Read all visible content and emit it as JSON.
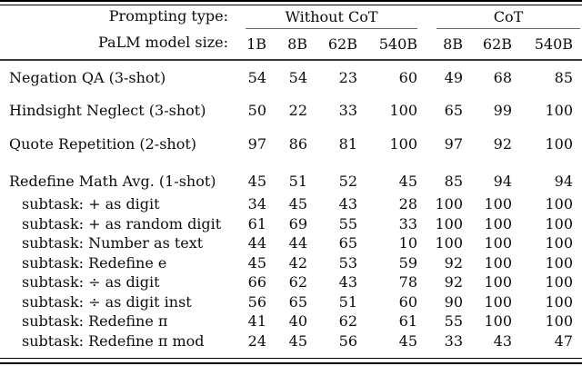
{
  "table": {
    "header": {
      "prompting_type_label": "Prompting type:",
      "model_size_label": "PaLM model size:",
      "group1": "Without CoT",
      "group2": "CoT",
      "group1_cols": [
        "1B",
        "8B",
        "62B",
        "540B"
      ],
      "group2_cols": [
        "8B",
        "62B",
        "540B"
      ]
    },
    "rows": [
      {
        "label": "Negation QA (3-shot)",
        "indent": false,
        "values": [
          "54",
          "54",
          "23",
          "60",
          "49",
          "68",
          "85"
        ]
      },
      {
        "label": "Hindsight Neglect (3-shot)",
        "indent": false,
        "values": [
          "50",
          "22",
          "33",
          "100",
          "65",
          "99",
          "100"
        ]
      },
      {
        "label": "Quote Repetition (2-shot)",
        "indent": false,
        "values": [
          "97",
          "86",
          "81",
          "100",
          "97",
          "92",
          "100"
        ]
      },
      {
        "label": "Redefine Math Avg. (1-shot)",
        "indent": false,
        "values": [
          "45",
          "51",
          "52",
          "45",
          "85",
          "94",
          "94"
        ]
      },
      {
        "label": "subtask: + as digit",
        "indent": true,
        "values": [
          "34",
          "45",
          "43",
          "28",
          "100",
          "100",
          "100"
        ]
      },
      {
        "label": "subtask: + as random digit",
        "indent": true,
        "values": [
          "61",
          "69",
          "55",
          "33",
          "100",
          "100",
          "100"
        ]
      },
      {
        "label": "subtask: Number as text",
        "indent": true,
        "values": [
          "44",
          "44",
          "65",
          "10",
          "100",
          "100",
          "100"
        ]
      },
      {
        "label": "subtask: Redefine e",
        "indent": true,
        "values": [
          "45",
          "42",
          "53",
          "59",
          "92",
          "100",
          "100"
        ]
      },
      {
        "label": "subtask: ÷ as digit",
        "indent": true,
        "values": [
          "66",
          "62",
          "43",
          "78",
          "92",
          "100",
          "100"
        ]
      },
      {
        "label": "subtask: ÷ as digit inst",
        "indent": true,
        "values": [
          "56",
          "65",
          "51",
          "60",
          "90",
          "100",
          "100"
        ]
      },
      {
        "label": "subtask: Redefine π",
        "indent": true,
        "values": [
          "41",
          "40",
          "62",
          "61",
          "55",
          "100",
          "100"
        ]
      },
      {
        "label": "subtask: Redefine π mod",
        "indent": true,
        "values": [
          "24",
          "45",
          "56",
          "45",
          "33",
          "43",
          "47"
        ]
      }
    ]
  },
  "chart_data": {
    "type": "table",
    "title": "Inverse-scaling task accuracy for PaLM, Without CoT vs CoT prompting",
    "column_groups": [
      "Without CoT",
      "CoT"
    ],
    "columns": [
      "1B",
      "8B",
      "62B",
      "540B",
      "8B (CoT)",
      "62B (CoT)",
      "540B (CoT)"
    ],
    "series": [
      {
        "name": "Negation QA (3-shot)",
        "values": [
          54,
          54,
          23,
          60,
          49,
          68,
          85
        ]
      },
      {
        "name": "Hindsight Neglect (3-shot)",
        "values": [
          50,
          22,
          33,
          100,
          65,
          99,
          100
        ]
      },
      {
        "name": "Quote Repetition (2-shot)",
        "values": [
          97,
          86,
          81,
          100,
          97,
          92,
          100
        ]
      },
      {
        "name": "Redefine Math Avg. (1-shot)",
        "values": [
          45,
          51,
          52,
          45,
          85,
          94,
          94
        ]
      },
      {
        "name": "subtask: + as digit",
        "values": [
          34,
          45,
          43,
          28,
          100,
          100,
          100
        ]
      },
      {
        "name": "subtask: + as random digit",
        "values": [
          61,
          69,
          55,
          33,
          100,
          100,
          100
        ]
      },
      {
        "name": "subtask: Number as text",
        "values": [
          44,
          44,
          65,
          10,
          100,
          100,
          100
        ]
      },
      {
        "name": "subtask: Redefine e",
        "values": [
          45,
          42,
          53,
          59,
          92,
          100,
          100
        ]
      },
      {
        "name": "subtask: ÷ as digit",
        "values": [
          66,
          62,
          43,
          78,
          92,
          100,
          100
        ]
      },
      {
        "name": "subtask: ÷ as digit inst",
        "values": [
          56,
          65,
          51,
          60,
          90,
          100,
          100
        ]
      },
      {
        "name": "subtask: Redefine π",
        "values": [
          41,
          40,
          62,
          61,
          55,
          100,
          100
        ]
      },
      {
        "name": "subtask: Redefine π mod",
        "values": [
          24,
          45,
          56,
          45,
          33,
          43,
          47
        ]
      }
    ]
  }
}
